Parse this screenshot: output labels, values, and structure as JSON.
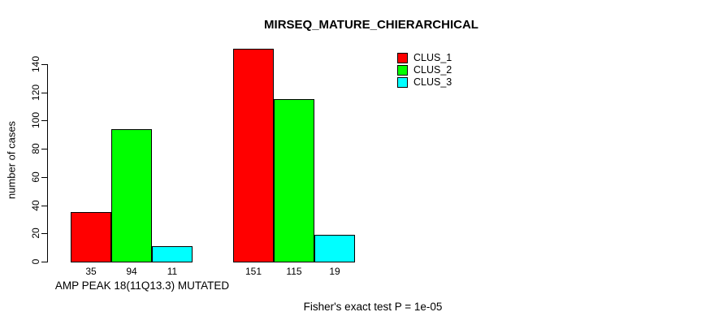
{
  "chart_data": {
    "type": "bar",
    "title": "MIRSEQ_MATURE_CHIERARCHICAL",
    "ylabel": "number of cases",
    "xlabel": "AMP PEAK 18(11Q13.3) MUTATED",
    "categories": [
      "AMP PEAK 18(11Q13.3) MUTATED",
      ""
    ],
    "series": [
      {
        "name": "CLUS_1",
        "color": "#ff0000",
        "values": [
          35,
          151
        ]
      },
      {
        "name": "CLUS_2",
        "color": "#00ff00",
        "values": [
          94,
          115
        ]
      },
      {
        "name": "CLUS_3",
        "color": "#00ffff",
        "values": [
          11,
          19
        ]
      }
    ],
    "bar_value_labels": [
      [
        35,
        94,
        11
      ],
      [
        151,
        115,
        19
      ]
    ],
    "yticks": [
      0,
      20,
      40,
      60,
      80,
      100,
      120,
      140
    ],
    "ylim": [
      0,
      155
    ],
    "grid": false,
    "legend_position": "top-right",
    "annotations": [
      "Fisher's exact test P = 1e-05"
    ]
  },
  "colors": {
    "background": "#ffffff",
    "axis": "#000000",
    "text": "#000000"
  }
}
